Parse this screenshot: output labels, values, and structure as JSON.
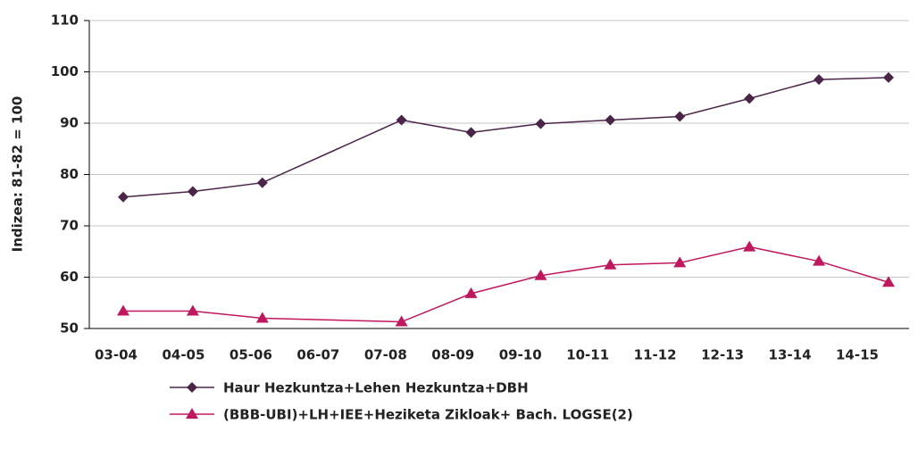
{
  "chart_data": {
    "type": "line",
    "y_label": "Indizea: 81-82 = 100",
    "categories": [
      "03-04",
      "04-05",
      "05-06",
      "06-07",
      "07-08",
      "08-09",
      "09-10",
      "10-11",
      "11-12",
      "12-13",
      "13-14",
      "14-15"
    ],
    "series": [
      {
        "name": "Haur Hezkuntza+Lehen Hezkuntza+DBH",
        "color": "#4b2548",
        "marker": "diamond",
        "values": [
          75.6,
          76.7,
          78.4,
          null,
          90.6,
          88.2,
          89.9,
          90.6,
          91.3,
          94.8,
          98.5,
          98.9
        ]
      },
      {
        "name": "(BBB-UBI)+LH+IEE+Heziketa Zikloak+ Bach. LOGSE(2)",
        "color": "#c0185f",
        "marker": "triangle",
        "values": [
          53.4,
          53.4,
          52.0,
          null,
          51.3,
          56.8,
          60.3,
          62.4,
          62.8,
          65.9,
          63.1,
          59.0
        ]
      }
    ],
    "ylim": [
      50,
      110
    ],
    "yticks": [
      50,
      60,
      70,
      80,
      90,
      100,
      110
    ],
    "grid": true,
    "span_gaps": true,
    "legend": "bottom"
  }
}
